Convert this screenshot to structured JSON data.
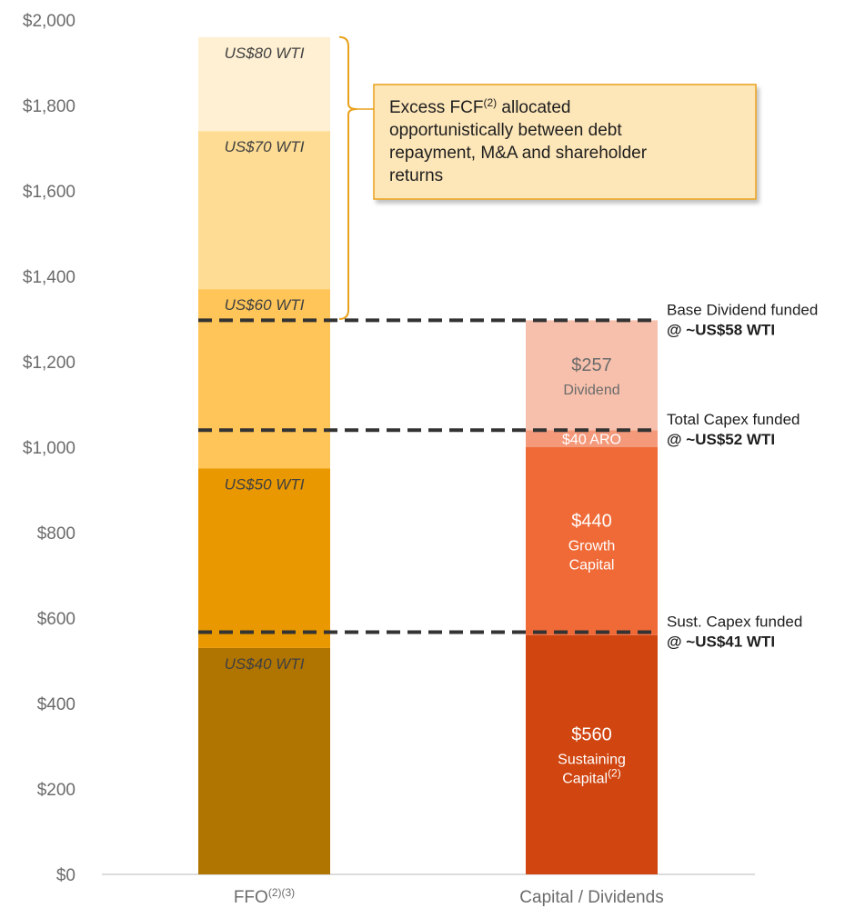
{
  "chart_data": {
    "type": "bar",
    "subtype": "stacked",
    "ylim": [
      0,
      2000
    ],
    "y_ticks": [
      "$0",
      "$200",
      "$400",
      "$600",
      "$800",
      "$1,000",
      "$1,200",
      "$1,400",
      "$1,600",
      "$1,800",
      "$2,000"
    ],
    "y_tick_values": [
      0,
      200,
      400,
      600,
      800,
      1000,
      1200,
      1400,
      1600,
      1800,
      2000
    ],
    "categories": [
      {
        "label": "FFO",
        "sup": "(2)(3)"
      },
      {
        "label": "Capital / Dividends",
        "sup": ""
      }
    ],
    "ffo_segments": [
      {
        "label": "US$40 WTI",
        "from": 0,
        "to": 530,
        "color": "#b07400"
      },
      {
        "label": "US$50 WTI",
        "from": 530,
        "to": 950,
        "color": "#e99800"
      },
      {
        "label": "US$60 WTI",
        "from": 950,
        "to": 1370,
        "color": "#ffc558"
      },
      {
        "label": "US$70 WTI",
        "from": 1370,
        "to": 1740,
        "color": "#fedc93"
      },
      {
        "label": "US$80 WTI",
        "from": 1740,
        "to": 1960,
        "color": "#fff0d3"
      }
    ],
    "capital_segments": [
      {
        "value": 560,
        "label": "$560",
        "sublabels": [
          "Sustaining",
          "Capital"
        ],
        "sup": "(2)",
        "color": "#d04510",
        "text_color": "#ffffff"
      },
      {
        "value": 440,
        "label": "$440",
        "sublabels": [
          "Growth",
          "Capital"
        ],
        "sup": "",
        "color": "#ef6a37",
        "text_color": "#ffffff"
      },
      {
        "value": 40,
        "label": "$40 ARO",
        "sublabels": [],
        "sup": "",
        "color": "#f5997b",
        "text_color": "#ffffff"
      },
      {
        "value": 257,
        "label": "$257",
        "sublabels": [
          "Dividend"
        ],
        "sup": "",
        "color": "#f7c0ac",
        "text_color": "#6b6b6b"
      }
    ],
    "funding_lines": [
      {
        "value": 567,
        "title": "Sust. Capex funded",
        "subtitle": "@ ~US$41 WTI"
      },
      {
        "value": 1040,
        "title": "Total Capex funded",
        "subtitle": "@ ~US$52 WTI"
      },
      {
        "value": 1297,
        "title": "Base Dividend funded",
        "subtitle": "@ ~US$58 WTI"
      }
    ],
    "callout": {
      "lines": [
        {
          "text": "Excess FCF",
          "sup": "(2)",
          "after": " allocated"
        },
        {
          "text": "opportunistically between debt",
          "sup": "",
          "after": ""
        },
        {
          "text": "repayment, M&A and shareholder",
          "sup": "",
          "after": ""
        },
        {
          "text": "returns",
          "sup": "",
          "after": ""
        }
      ],
      "brace_from": 1300,
      "brace_to": 1960,
      "fill": "#fde6b8",
      "border": "#e9a11b"
    }
  }
}
